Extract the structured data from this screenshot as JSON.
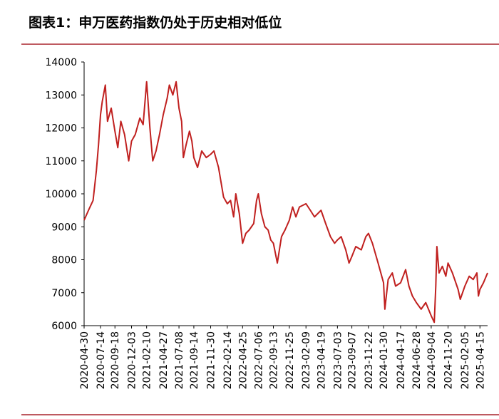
{
  "chart_data": {
    "type": "line",
    "title": "图表1：申万医药指数仍处于历史相对低位",
    "x": [
      "2020-04-30",
      "2020-05-20",
      "2020-06-10",
      "2020-06-25",
      "2020-07-05",
      "2020-07-14",
      "2020-07-22",
      "2020-08-05",
      "2020-08-15",
      "2020-09-01",
      "2020-09-18",
      "2020-10-01",
      "2020-10-15",
      "2020-11-01",
      "2020-11-20",
      "2020-12-03",
      "2020-12-20",
      "2021-01-10",
      "2021-01-25",
      "2021-02-10",
      "2021-02-25",
      "2021-03-10",
      "2021-03-25",
      "2021-04-10",
      "2021-04-27",
      "2021-05-15",
      "2021-05-25",
      "2021-06-10",
      "2021-06-25",
      "2021-07-08",
      "2021-07-20",
      "2021-07-28",
      "2021-08-10",
      "2021-08-25",
      "2021-09-05",
      "2021-09-14",
      "2021-10-01",
      "2021-10-20",
      "2021-11-10",
      "2021-11-30",
      "2021-12-15",
      "2022-01-05",
      "2022-01-28",
      "2022-02-14",
      "2022-03-01",
      "2022-03-15",
      "2022-03-25",
      "2022-04-10",
      "2022-04-25",
      "2022-05-10",
      "2022-05-25",
      "2022-06-15",
      "2022-06-28",
      "2022-07-06",
      "2022-07-20",
      "2022-08-05",
      "2022-08-20",
      "2022-09-01",
      "2022-09-13",
      "2022-10-01",
      "2022-10-20",
      "2022-11-05",
      "2022-11-25",
      "2022-12-10",
      "2022-12-25",
      "2023-01-10",
      "2023-02-09",
      "2023-03-01",
      "2023-03-20",
      "2023-04-19",
      "2023-05-10",
      "2023-06-01",
      "2023-06-20",
      "2023-07-03",
      "2023-07-20",
      "2023-08-10",
      "2023-08-25",
      "2023-09-07",
      "2023-09-25",
      "2023-10-20",
      "2023-11-10",
      "2023-11-22",
      "2023-12-10",
      "2024-01-05",
      "2024-01-30",
      "2024-02-05",
      "2024-02-20",
      "2024-03-10",
      "2024-03-25",
      "2024-04-17",
      "2024-05-10",
      "2024-05-25",
      "2024-06-10",
      "2024-06-28",
      "2024-07-20",
      "2024-08-10",
      "2024-09-04",
      "2024-09-18",
      "2024-09-25",
      "2024-09-30",
      "2024-10-10",
      "2024-10-25",
      "2024-11-10",
      "2024-11-20",
      "2024-12-10",
      "2025-01-05",
      "2025-01-15",
      "2025-02-05",
      "2025-02-25",
      "2025-03-15",
      "2025-04-01",
      "2025-04-08",
      "2025-04-15",
      "2025-05-01",
      "2025-05-20"
    ],
    "series": [
      {
        "color": "#c0201f",
        "values": [
          9200,
          9500,
          9800,
          10700,
          11500,
          12400,
          12800,
          13300,
          12200,
          12600,
          11900,
          11400,
          12200,
          11800,
          11000,
          11600,
          11800,
          12300,
          12100,
          13400,
          12000,
          11000,
          11300,
          11800,
          12400,
          12900,
          13300,
          13000,
          13400,
          12600,
          12200,
          11100,
          11500,
          11900,
          11600,
          11100,
          10800,
          11300,
          11100,
          11200,
          11300,
          10800,
          9900,
          9700,
          9800,
          9300,
          10000,
          9400,
          8500,
          8800,
          8900,
          9100,
          9800,
          10000,
          9400,
          9000,
          8900,
          8600,
          8500,
          7900,
          8700,
          8900,
          9200,
          9600,
          9300,
          9600,
          9700,
          9500,
          9300,
          9500,
          9100,
          8700,
          8500,
          8600,
          8700,
          8300,
          7900,
          8100,
          8400,
          8300,
          8700,
          8800,
          8500,
          7900,
          7300,
          6500,
          7400,
          7600,
          7200,
          7300,
          7700,
          7200,
          6900,
          6700,
          6500,
          6700,
          6300,
          6100,
          7200,
          8400,
          7600,
          7800,
          7500,
          7900,
          7600,
          7100,
          6800,
          7200,
          7500,
          7400,
          7600,
          6900,
          7100,
          7300,
          7600
        ]
      }
    ],
    "xlim": [
      "2020-04-30",
      "2025-05-20"
    ],
    "xticks": [
      "2020-04-30",
      "2020-07-14",
      "2020-09-18",
      "2020-12-03",
      "2021-02-10",
      "2021-04-27",
      "2021-07-08",
      "2021-09-14",
      "2021-11-30",
      "2022-02-14",
      "2022-04-25",
      "2022-07-06",
      "2022-09-13",
      "2022-11-25",
      "2023-02-09",
      "2023-04-19",
      "2023-07-03",
      "2023-09-07",
      "2023-11-22",
      "2024-01-30",
      "2024-04-17",
      "2024-06-28",
      "2024-09-04",
      "2024-11-20",
      "2025-02-05",
      "2025-04-15"
    ],
    "ylim": [
      6000,
      14000
    ],
    "yticks": [
      6000,
      7000,
      8000,
      9000,
      10000,
      11000,
      12000,
      13000,
      14000
    ]
  }
}
